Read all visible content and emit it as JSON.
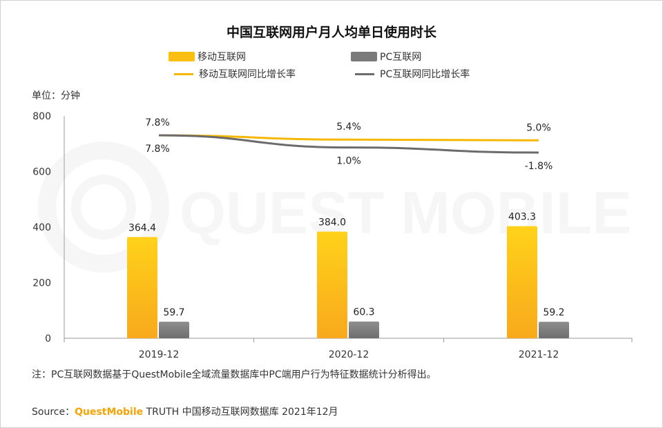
{
  "colors": {
    "mobile": "#fbbf14",
    "pc": "#7a7a7a",
    "mobile_line": "#f5b700",
    "pc_line": "#6b6b6b"
  },
  "watermark": "QUEST MOBILE",
  "unit_label": "单位：分钟",
  "legend": {
    "mobile": "移动互联网",
    "pc": "PC互联网",
    "mobile_rate": "移动互联网同比增长率",
    "pc_rate": "PC互联网同比增长率"
  },
  "note": "注：PC互联网数据基于QuestMobile全域流量数据库中PC端用户行为特征数据统计分析得出。",
  "source": {
    "prefix": "Source：",
    "brand": "QuestMobile",
    "text": " TRUTH 中国移动互联网数据库 2021年12月"
  },
  "chart_data": {
    "type": "bar",
    "title": "中国互联网用户月人均单日使用时长",
    "categories": [
      "2019-12",
      "2020-12",
      "2021-12"
    ],
    "ylim": [
      0,
      800
    ],
    "yticks": [
      0,
      200,
      400,
      600,
      800
    ],
    "series": [
      {
        "name": "移动互联网",
        "type": "bar",
        "values": [
          364.4,
          384.0,
          403.3
        ],
        "labels": [
          "364.4",
          "384.0",
          "403.3"
        ]
      },
      {
        "name": "PC互联网",
        "type": "bar",
        "values": [
          59.7,
          60.3,
          59.2
        ],
        "labels": [
          "59.7",
          "60.3",
          "59.2"
        ]
      }
    ],
    "rate_series": [
      {
        "name": "移动互联网同比增长率",
        "type": "line",
        "values": [
          7.8,
          5.4,
          5.0
        ],
        "labels": [
          "7.8%",
          "5.4%",
          "5.0%"
        ]
      },
      {
        "name": "PC互联网同比增长率",
        "type": "line",
        "values": [
          7.8,
          1.0,
          -1.8
        ],
        "labels": [
          "7.8%",
          "1.0%",
          "-1.8%"
        ]
      }
    ],
    "legend_position": "top-left"
  }
}
